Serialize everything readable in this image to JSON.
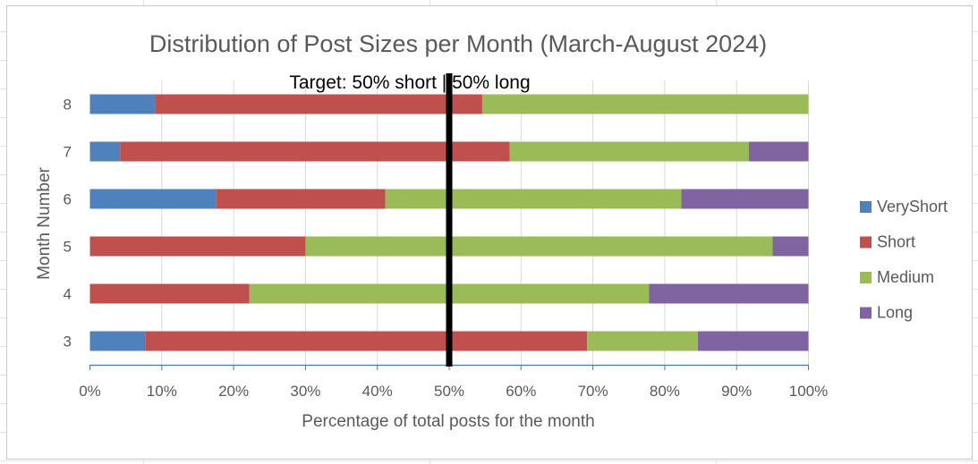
{
  "chart_data": {
    "type": "bar",
    "orientation": "horizontal",
    "stacked": "percent",
    "title": "Distribution of Post Sizes per Month (March-August 2024)",
    "xlabel": "Percentage of total posts for the month",
    "ylabel": "Month Number",
    "categories": [
      "3",
      "4",
      "5",
      "6",
      "7",
      "8"
    ],
    "xlim": [
      0,
      100
    ],
    "xticks": [
      "0%",
      "10%",
      "20%",
      "30%",
      "40%",
      "50%",
      "60%",
      "70%",
      "80%",
      "90%",
      "100%"
    ],
    "grid": true,
    "legend_position": "right",
    "series": [
      {
        "name": "VeryShort",
        "color": "#4f81bd",
        "values": [
          7.7,
          0,
          0,
          17.6,
          4.2,
          9.1
        ]
      },
      {
        "name": "Short",
        "color": "#c0504d",
        "values": [
          61.5,
          22.2,
          30.0,
          23.5,
          54.2,
          45.5
        ]
      },
      {
        "name": "Medium",
        "color": "#9bbb59",
        "values": [
          15.4,
          55.6,
          65.0,
          41.2,
          33.3,
          45.4
        ]
      },
      {
        "name": "Long",
        "color": "#8064a2",
        "values": [
          15.4,
          22.2,
          5.0,
          17.7,
          8.3,
          0
        ]
      }
    ],
    "annotation": {
      "text": "Target: 50% short | 50% long",
      "x": 50,
      "color": "#000000"
    }
  }
}
